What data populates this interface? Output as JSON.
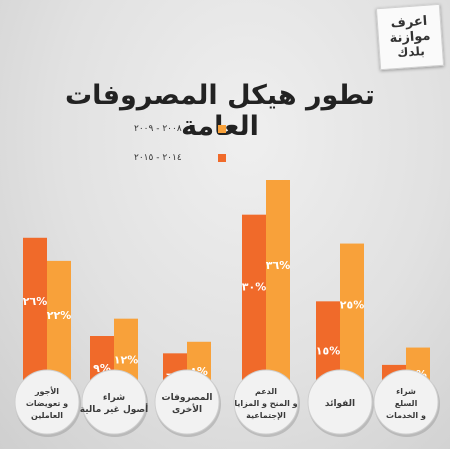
{
  "logo": {
    "line1": "اعرف",
    "line2": "موازنة",
    "line3": "بلدك"
  },
  "chart_data": {
    "type": "bar",
    "title": "تطور هيكل المصروفات العامة",
    "categories": [
      [
        "الأجور",
        "و تعويضات",
        "العاملين"
      ],
      [
        "شراء",
        "أصول غير مالية"
      ],
      [
        "المصروفات",
        "الأخرى"
      ],
      [
        "الدعم",
        "و المنح و المزايا",
        "الإجتماعية"
      ],
      [
        "الفوائد"
      ],
      [
        "شراء",
        "السلع",
        "و الخدمات"
      ]
    ],
    "series": [
      {
        "name": "٢٠٠٨ - ٢٠٠٩",
        "color": "#f8a13a",
        "values": [
          22,
          12,
          8,
          36,
          25,
          7
        ],
        "labels": [
          "٢٢%",
          "١٢%",
          "٨%",
          "٣٦%",
          "٢٥%",
          "٧%"
        ]
      },
      {
        "name": "٢٠١٤ - ٢٠١٥",
        "color": "#f06a2a",
        "values": [
          26,
          9,
          6,
          30,
          15,
          4
        ],
        "labels": [
          "٢٦%",
          "٩%",
          "٦%",
          "٣٠%",
          "١٥%",
          "٤%"
        ]
      }
    ],
    "ylim": [
      0,
      40
    ],
    "legend": "top-left"
  }
}
